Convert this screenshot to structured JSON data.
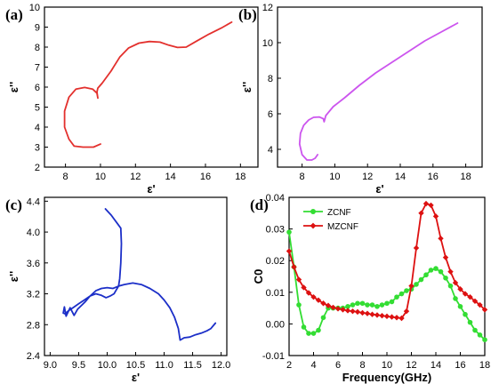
{
  "chart_data": [
    {
      "panel_label": "(a)",
      "type": "line",
      "color": "#e3302d",
      "xlabel": "ε'",
      "ylabel": "ε''",
      "xlim": [
        6.8,
        19
      ],
      "ylim": [
        2,
        10
      ],
      "xticks": [
        8,
        10,
        12,
        14,
        16,
        18
      ],
      "yticks": [
        2,
        3,
        4,
        5,
        6,
        7,
        8,
        9,
        10
      ],
      "series": [
        {
          "x": [
            10.0,
            9.6,
            9.0,
            8.5,
            8.2,
            7.95,
            7.95,
            8.2,
            8.6,
            9.1,
            9.55,
            9.8,
            9.85,
            9.8,
            9.85,
            10.1,
            10.6,
            11.1,
            11.6,
            12.2,
            12.8,
            13.4,
            13.9,
            14.4,
            14.9,
            15.5,
            16.2,
            16.9,
            17.5
          ],
          "y": [
            3.15,
            3.0,
            3.0,
            3.05,
            3.4,
            4.0,
            4.8,
            5.5,
            5.9,
            5.98,
            5.9,
            5.7,
            5.45,
            5.75,
            5.95,
            6.2,
            6.8,
            7.5,
            7.95,
            8.2,
            8.28,
            8.25,
            8.1,
            7.98,
            8.0,
            8.3,
            8.65,
            8.95,
            9.25
          ]
        }
      ]
    },
    {
      "panel_label": "(b)",
      "type": "line",
      "color": "#cc55ee",
      "xlabel": "ε'",
      "ylabel": "ε''",
      "xlim": [
        6.5,
        19
      ],
      "ylim": [
        3,
        12
      ],
      "xticks": [
        8,
        10,
        12,
        14,
        16,
        18
      ],
      "yticks": [
        4,
        6,
        8,
        10,
        12
      ],
      "series": [
        {
          "x": [
            8.95,
            8.8,
            8.6,
            8.3,
            8.0,
            7.85,
            7.9,
            8.1,
            8.4,
            8.7,
            9.05,
            9.3,
            9.35,
            9.45,
            9.9,
            10.6,
            11.5,
            12.5,
            13.5,
            14.5,
            15.5,
            16.5,
            17.5
          ],
          "y": [
            3.7,
            3.5,
            3.4,
            3.4,
            3.7,
            4.3,
            4.9,
            5.35,
            5.65,
            5.8,
            5.82,
            5.72,
            5.55,
            5.9,
            6.4,
            6.9,
            7.6,
            8.3,
            8.9,
            9.5,
            10.1,
            10.6,
            11.1
          ]
        }
      ]
    },
    {
      "panel_label": "(c)",
      "type": "line",
      "color": "#1c2fc8",
      "xlabel": "ε'",
      "ylabel": "ε''",
      "xlim": [
        8.9,
        12.1
      ],
      "ylim": [
        2.4,
        4.45
      ],
      "xticks": [
        9.0,
        9.5,
        10.0,
        10.5,
        11.0,
        11.5,
        12.0
      ],
      "xtick_labels": [
        "9.0",
        "9.5",
        "10.0",
        "10.5",
        "11.0",
        "11.5",
        "12.0"
      ],
      "yticks": [
        2.4,
        2.8,
        3.2,
        3.6,
        4.0,
        4.4
      ],
      "ytick_labels": [
        "2.4",
        "2.8",
        "3.2",
        "3.6",
        "4.0",
        "4.4"
      ],
      "series": [
        {
          "x": [
            9.97,
            10.07,
            10.17,
            10.24,
            10.25,
            10.24,
            10.22,
            10.2,
            10.16,
            10.12,
            10.05,
            9.98,
            9.9,
            9.8,
            9.7,
            9.6,
            9.5,
            9.4,
            9.32,
            9.26,
            9.23,
            9.25,
            9.28,
            9.35,
            9.42,
            9.48,
            9.55,
            9.62,
            9.7,
            9.8,
            9.9,
            10.0,
            10.1,
            10.2,
            10.3,
            10.45,
            10.6,
            10.75,
            10.9,
            11.0,
            11.1,
            11.18,
            11.25,
            11.28,
            11.35,
            11.45,
            11.55,
            11.65,
            11.75,
            11.82,
            11.9
          ],
          "y": [
            4.3,
            4.22,
            4.12,
            4.05,
            3.85,
            3.6,
            3.4,
            3.3,
            3.25,
            3.2,
            3.17,
            3.15,
            3.18,
            3.2,
            3.17,
            3.12,
            3.07,
            3.02,
            2.98,
            2.94,
            2.95,
            3.03,
            2.91,
            3.02,
            2.92,
            3.0,
            3.05,
            3.1,
            3.17,
            3.24,
            3.27,
            3.28,
            3.27,
            3.3,
            3.32,
            3.34,
            3.32,
            3.27,
            3.2,
            3.12,
            3.02,
            2.9,
            2.75,
            2.6,
            2.63,
            2.64,
            2.67,
            2.69,
            2.72,
            2.75,
            2.82
          ]
        }
      ]
    },
    {
      "panel_label": "(d)",
      "type": "line",
      "xlabel": "Frequency(GHz)",
      "ylabel": "C0",
      "xlim": [
        2,
        18
      ],
      "ylim": [
        -0.01,
        0.04
      ],
      "xticks": [
        2,
        4,
        6,
        8,
        10,
        12,
        14,
        16,
        18
      ],
      "yticks": [
        -0.01,
        0.0,
        0.01,
        0.02,
        0.03,
        0.04
      ],
      "ytick_labels": [
        "-0.01",
        "0.00",
        "0.01",
        "0.02",
        "0.03",
        "0.04"
      ],
      "legend_position": "top-left",
      "series": [
        {
          "name": "ZCNF",
          "color": "#33dd33",
          "marker": "circle",
          "x": [
            2.0,
            2.4,
            2.8,
            3.2,
            3.6,
            4.0,
            4.4,
            4.8,
            5.2,
            5.6,
            6.0,
            6.4,
            6.8,
            7.2,
            7.6,
            8.0,
            8.4,
            8.8,
            9.2,
            9.6,
            10.0,
            10.4,
            10.8,
            11.2,
            11.6,
            12.0,
            12.4,
            12.8,
            13.2,
            13.6,
            14.0,
            14.4,
            14.8,
            15.2,
            15.6,
            16.0,
            16.4,
            16.8,
            17.2,
            17.6,
            18.0
          ],
          "y": [
            0.029,
            0.018,
            0.006,
            -0.001,
            -0.003,
            -0.003,
            -0.002,
            0.002,
            0.005,
            0.005,
            0.005,
            0.005,
            0.0055,
            0.006,
            0.0065,
            0.0065,
            0.006,
            0.006,
            0.0055,
            0.006,
            0.0065,
            0.007,
            0.0085,
            0.0095,
            0.0105,
            0.011,
            0.0125,
            0.014,
            0.0155,
            0.017,
            0.0175,
            0.0165,
            0.0145,
            0.012,
            0.008,
            0.0055,
            0.003,
            0.0005,
            -0.002,
            -0.0035,
            -0.005
          ]
        },
        {
          "name": "MZCNF",
          "color": "#dd1111",
          "marker": "diamond",
          "x": [
            2.0,
            2.4,
            2.8,
            3.2,
            3.6,
            4.0,
            4.4,
            4.8,
            5.2,
            5.6,
            6.0,
            6.4,
            6.8,
            7.2,
            7.6,
            8.0,
            8.4,
            8.8,
            9.2,
            9.6,
            10.0,
            10.4,
            10.8,
            11.2,
            11.6,
            12.0,
            12.4,
            12.8,
            13.2,
            13.6,
            14.0,
            14.4,
            14.8,
            15.2,
            15.6,
            16.0,
            16.4,
            16.8,
            17.2,
            17.6,
            18.0
          ],
          "y": [
            0.023,
            0.018,
            0.014,
            0.0115,
            0.0098,
            0.0085,
            0.0075,
            0.0065,
            0.0058,
            0.0052,
            0.0048,
            0.0045,
            0.0042,
            0.004,
            0.0038,
            0.0035,
            0.0033,
            0.003,
            0.0028,
            0.0026,
            0.0024,
            0.0022,
            0.002,
            0.0018,
            0.004,
            0.012,
            0.024,
            0.035,
            0.038,
            0.0375,
            0.034,
            0.027,
            0.021,
            0.0165,
            0.013,
            0.011,
            0.0095,
            0.0085,
            0.0072,
            0.006,
            0.0045
          ]
        }
      ]
    }
  ]
}
